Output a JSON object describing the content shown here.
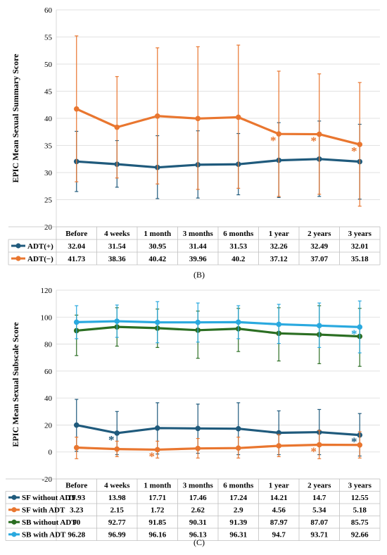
{
  "colors": {
    "dark_blue": "#1f5a7c",
    "orange": "#e9762f",
    "green": "#2b6e22",
    "light_blue": "#2aa9df",
    "grid": "#d9d9d9",
    "axis_text": "#000000",
    "table_border": "#bfbfbf"
  },
  "chart_data": [
    {
      "type": "line",
      "panel_label": "(B)",
      "ylabel": "EPIC Mean Sexual Summary Score",
      "xlabel": "",
      "ylim": [
        20,
        60
      ],
      "ytick_step": 5,
      "grid": true,
      "legend": "data table below plot",
      "categories": [
        "Before",
        "4 weeks",
        "1 month",
        "3 months",
        "6 months",
        "1 year",
        "2 years",
        "3 years"
      ],
      "series": [
        {
          "name": "ADT(+)",
          "color_key": "dark_blue",
          "values": [
            32.04,
            31.54,
            30.95,
            31.44,
            31.53,
            32.26,
            32.49,
            32.01
          ],
          "error_low": [
            26.5,
            27.3,
            25.2,
            25.3,
            25.9,
            25.4,
            25.6,
            25.1
          ],
          "error_high": [
            37.6,
            35.9,
            36.8,
            37.7,
            37.2,
            39.2,
            39.5,
            38.9
          ],
          "asterisks": []
        },
        {
          "name": "ADT(−)",
          "color_key": "orange",
          "values": [
            41.73,
            38.36,
            40.42,
            39.96,
            40.2,
            37.12,
            37.07,
            35.18
          ],
          "error_low": [
            28.3,
            29.0,
            27.9,
            26.9,
            27.1,
            25.6,
            26.0,
            23.8
          ],
          "error_high": [
            55.2,
            47.7,
            53.0,
            53.2,
            53.5,
            48.7,
            48.2,
            46.6
          ],
          "asterisks": [
            false,
            false,
            false,
            false,
            false,
            true,
            true,
            true
          ]
        }
      ],
      "asterisk_symbol": "*"
    },
    {
      "type": "line",
      "panel_label": "(C)",
      "ylabel": "EPIC Mean Sexual Subscale Score",
      "xlabel": "",
      "ylim": [
        -20,
        120
      ],
      "ytick_step": 20,
      "grid": true,
      "legend": "data table below plot",
      "categories": [
        "Before",
        "4 weeks",
        "1 month",
        "3 months",
        "6 months",
        "1 year",
        "2 years",
        "3 years"
      ],
      "series": [
        {
          "name": "SF without ADT",
          "color_key": "dark_blue",
          "values": [
            19.93,
            13.98,
            17.71,
            17.46,
            17.24,
            14.21,
            14.7,
            12.55
          ],
          "error_low": [
            0.5,
            -2.0,
            -1.5,
            -1.0,
            -2.0,
            -2.0,
            -2.0,
            -3.0
          ],
          "error_high": [
            39.0,
            30.0,
            36.5,
            35.5,
            36.5,
            30.5,
            31.5,
            28.5
          ],
          "asterisks": [
            false,
            true,
            false,
            false,
            false,
            false,
            false,
            true
          ]
        },
        {
          "name": "SF with ADT",
          "color_key": "orange",
          "values": [
            3.23,
            2.15,
            1.72,
            2.62,
            2.9,
            4.56,
            5.34,
            5.18
          ],
          "error_low": [
            -5.0,
            -3.5,
            -4.5,
            -4.5,
            -4.5,
            -3.5,
            -5.0,
            -4.5
          ],
          "error_high": [
            11.0,
            8.0,
            8.0,
            10.0,
            11.0,
            13.0,
            16.0,
            15.0
          ],
          "asterisks": [
            false,
            false,
            true,
            false,
            false,
            false,
            true,
            false
          ]
        },
        {
          "name": "SB without ADT",
          "color_key": "green",
          "values": [
            90,
            92.77,
            91.85,
            90.31,
            91.39,
            87.97,
            87.07,
            85.75
          ],
          "error_low": [
            71.5,
            78.5,
            77.5,
            69.5,
            74.5,
            67.5,
            65.5,
            63.5
          ],
          "error_high": [
            101.5,
            107.0,
            106.0,
            104.5,
            106.5,
            107.0,
            108.5,
            106.5
          ],
          "asterisks": []
        },
        {
          "name": "SB with ADT",
          "color_key": "light_blue",
          "values": [
            96.28,
            96.99,
            96.16,
            96.13,
            96.31,
            94.7,
            93.71,
            92.66
          ],
          "error_low": [
            84.0,
            85.0,
            81.0,
            81.5,
            84.0,
            80.5,
            77.5,
            73.5
          ],
          "error_high": [
            108.5,
            109.0,
            111.5,
            110.5,
            108.5,
            109.5,
            110.5,
            112.0
          ],
          "asterisks": [
            false,
            false,
            false,
            false,
            false,
            false,
            false,
            true
          ]
        }
      ],
      "asterisk_symbol": "*"
    }
  ]
}
